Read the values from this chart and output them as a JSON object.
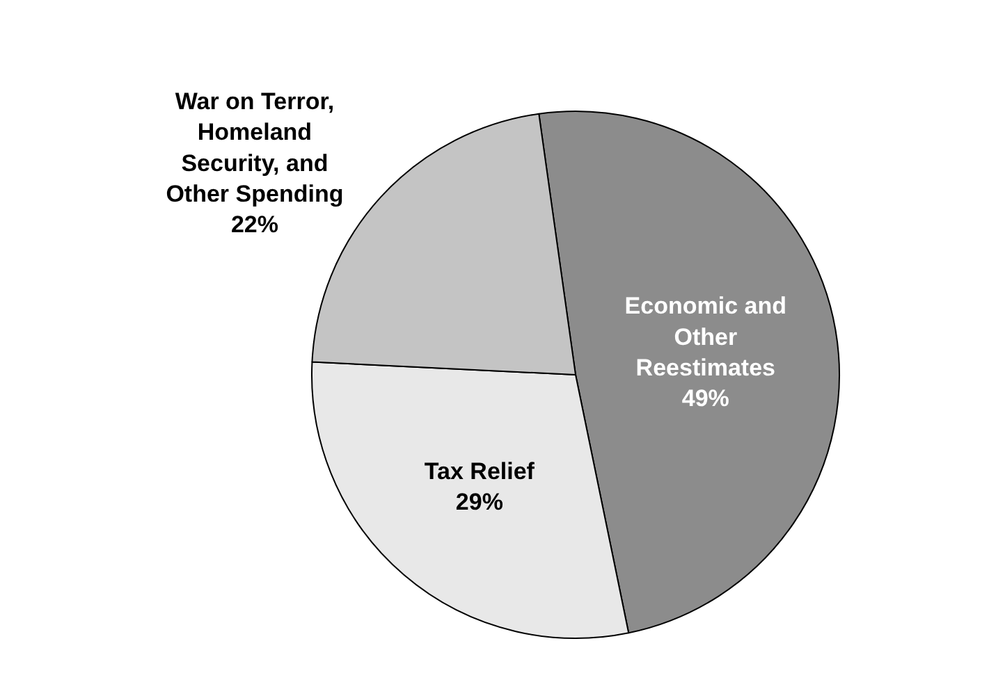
{
  "chart_data": {
    "type": "pie",
    "categories": [
      "Economic and Other Reestimates",
      "Tax Relief",
      "War on Terror, Homeland Security, and Other Spending"
    ],
    "values": [
      49,
      29,
      22
    ],
    "value_labels": [
      "49%",
      "29%",
      "22%"
    ],
    "colors": [
      "#8c8c8c",
      "#e8e8e8",
      "#c4c4c4"
    ],
    "legend": false
  }
}
